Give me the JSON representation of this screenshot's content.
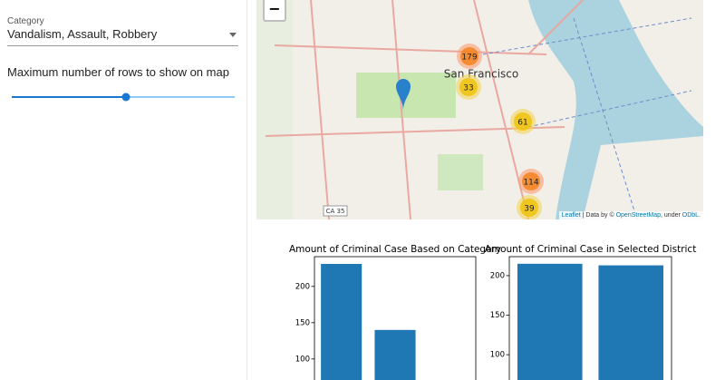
{
  "sidebar": {
    "category_label": "Category",
    "category_value": "Vandalism, Assault, Robbery",
    "slider_label": "Maximum number of rows to show on map"
  },
  "map": {
    "zoom_out": "−",
    "place_label": "San Francisco",
    "route_label": "CA 35",
    "clusters": [
      179,
      33,
      61,
      114,
      39
    ],
    "attribution": [
      "Leaflet",
      "| Data by ©",
      "OpenStreetMap",
      ", under",
      "ODbL."
    ]
  },
  "chart_data": [
    {
      "type": "bar",
      "title": "Amount of Criminal Case Based on Category",
      "categories": [
        null,
        null
      ],
      "values": [
        231,
        140
      ],
      "color": "#1f77b4",
      "ylim": [
        71,
        241
      ],
      "yticks": [
        100,
        150,
        200
      ]
    },
    {
      "type": "bar",
      "title": "Amount of Criminal Case in Selected District",
      "categories": [
        null,
        null
      ],
      "values": [
        215,
        213
      ],
      "color": "#1f77b4",
      "ylim": [
        68,
        224
      ],
      "yticks": [
        100,
        150,
        200
      ]
    }
  ]
}
